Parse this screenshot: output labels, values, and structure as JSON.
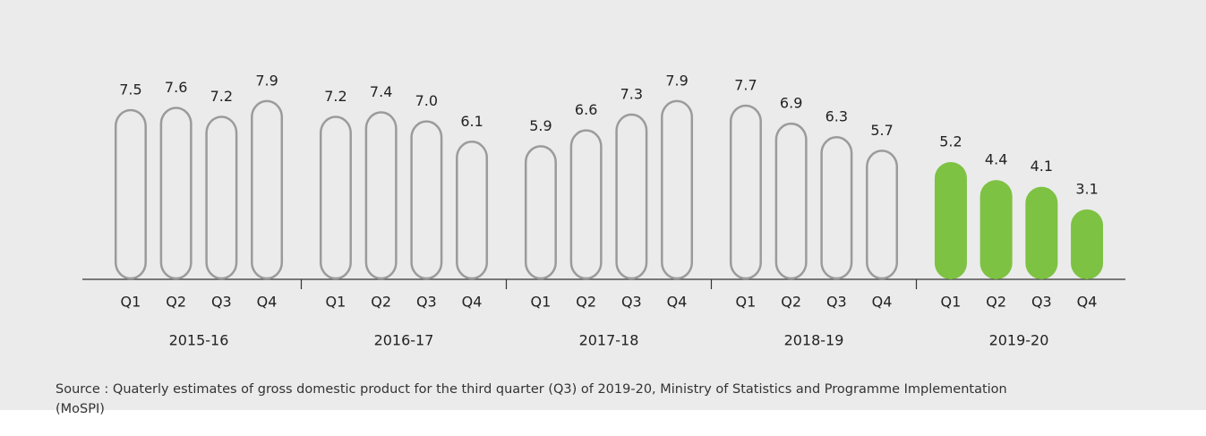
{
  "chart_data": {
    "type": "bar",
    "groups": [
      {
        "name": "2015-16",
        "categories": [
          "Q1",
          "Q2",
          "Q3",
          "Q4"
        ],
        "values": [
          7.5,
          7.6,
          7.2,
          7.9
        ],
        "style": "outline",
        "color": "#9b9b9b"
      },
      {
        "name": "2016-17",
        "categories": [
          "Q1",
          "Q2",
          "Q3",
          "Q4"
        ],
        "values": [
          7.2,
          7.4,
          7.0,
          6.1
        ],
        "value_labels": [
          "7.2",
          "7.4",
          "7.0",
          "6.1"
        ],
        "style": "outline",
        "color": "#9b9b9b"
      },
      {
        "name": "2017-18",
        "categories": [
          "Q1",
          "Q2",
          "Q3",
          "Q4"
        ],
        "values": [
          5.9,
          6.6,
          7.3,
          7.9
        ],
        "style": "outline",
        "color": "#9b9b9b"
      },
      {
        "name": "2018-19",
        "categories": [
          "Q1",
          "Q2",
          "Q3",
          "Q4"
        ],
        "values": [
          7.7,
          6.9,
          6.3,
          5.7
        ],
        "style": "outline",
        "color": "#9b9b9b"
      },
      {
        "name": "2019-20",
        "categories": [
          "Q1",
          "Q2",
          "Q3",
          "Q4"
        ],
        "values": [
          5.2,
          4.4,
          4.1,
          3.1
        ],
        "style": "filled",
        "color": "#7dc242"
      }
    ],
    "source": "Source : Quaterly estimates of gross domestic product for the third quarter (Q3) of 2019-20, Ministry of Statistics and Programme Implementation (MoSPI)"
  }
}
